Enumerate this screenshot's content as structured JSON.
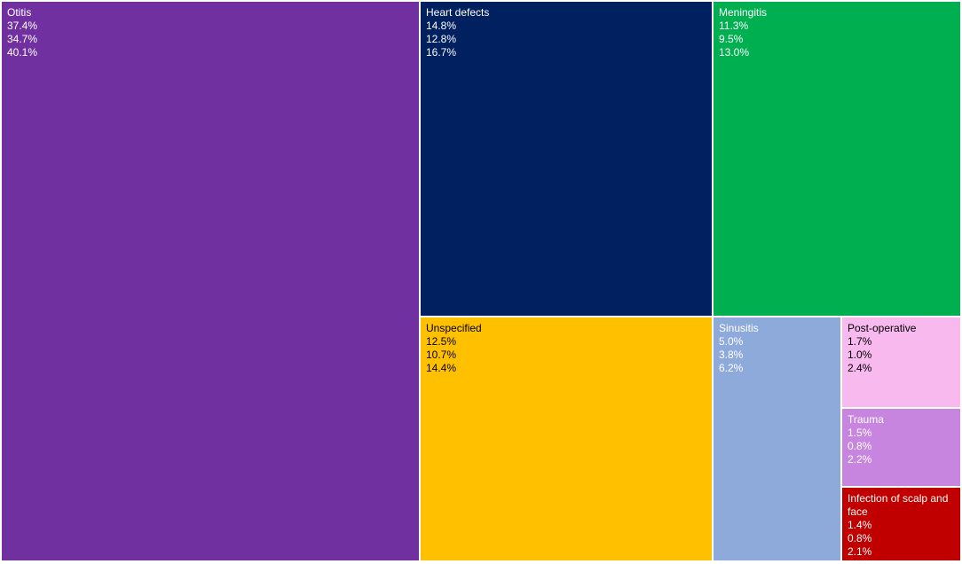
{
  "chart_data": {
    "type": "treemap",
    "tiles": [
      {
        "label": "Otitis",
        "values": [
          "37.4%",
          "34.7%",
          "40.1%"
        ],
        "color": "#7030a0",
        "text_color": "#ffffff"
      },
      {
        "label": "Heart defects",
        "values": [
          "14.8%",
          "12.8%",
          "16.7%"
        ],
        "color": "#002060",
        "text_color": "#ffffff"
      },
      {
        "label": "Meningitis",
        "values": [
          "11.3%",
          "9.5%",
          "13.0%"
        ],
        "color": "#00b050",
        "text_color": "#ffffff"
      },
      {
        "label": "Unspecified",
        "values": [
          "12.5%",
          "10.7%",
          "14.4%"
        ],
        "color": "#ffc000",
        "text_color": "#000000"
      },
      {
        "label": "Sinusitis",
        "values": [
          "5.0%",
          "3.8%",
          "6.2%"
        ],
        "color": "#8eaadb",
        "text_color": "#ffffff"
      },
      {
        "label": "Post-operative",
        "values": [
          "1.7%",
          "1.0%",
          "2.4%"
        ],
        "color": "#f8b9ef",
        "text_color": "#000000"
      },
      {
        "label": "Trauma",
        "values": [
          "1.5%",
          "0.8%",
          "2.2%"
        ],
        "color": "#c785e0",
        "text_color": "#ffffff"
      },
      {
        "label": "Infection of scalp and face",
        "values": [
          "1.4%",
          "0.8%",
          "2.1%"
        ],
        "color": "#c00000",
        "text_color": "#ffffff"
      }
    ]
  }
}
